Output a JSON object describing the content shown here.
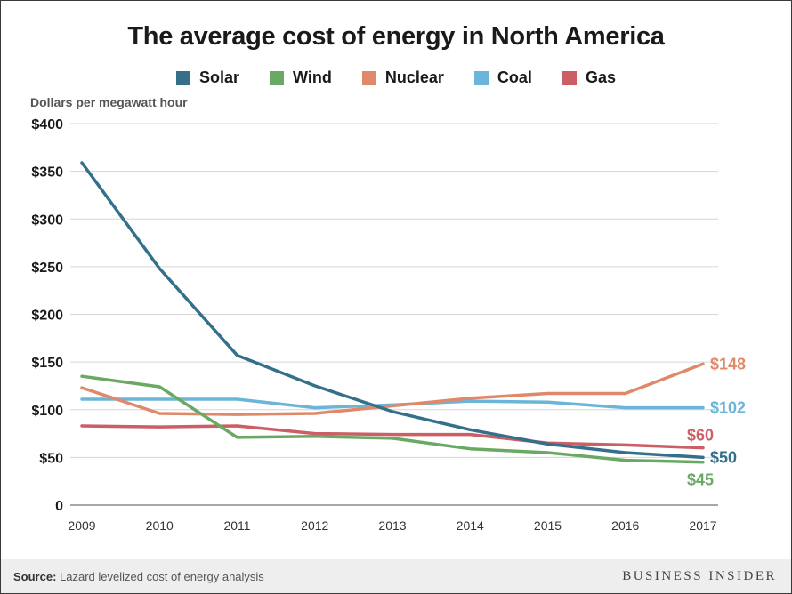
{
  "chart_data": {
    "type": "line",
    "title": "The average cost of energy in North America",
    "ylabel": "Dollars per megawatt hour",
    "xlabel": "",
    "x": [
      "2009",
      "2010",
      "2011",
      "2012",
      "2013",
      "2014",
      "2015",
      "2016",
      "2017"
    ],
    "ylim": [
      0,
      400
    ],
    "yticks": [
      {
        "value": 0,
        "label": "0"
      },
      {
        "value": 50,
        "label": "$50"
      },
      {
        "value": 100,
        "label": "$100"
      },
      {
        "value": 150,
        "label": "$150"
      },
      {
        "value": 200,
        "label": "$200"
      },
      {
        "value": 250,
        "label": "$250"
      },
      {
        "value": 300,
        "label": "$300"
      },
      {
        "value": 350,
        "label": "$350"
      },
      {
        "value": 400,
        "label": "$400"
      }
    ],
    "grid": true,
    "legend_position": "top",
    "series": [
      {
        "name": "Solar",
        "color": "#35708a",
        "values": [
          359,
          248,
          157,
          125,
          98,
          79,
          64,
          55,
          50
        ],
        "end_label": "$50"
      },
      {
        "name": "Wind",
        "color": "#6aa964",
        "values": [
          135,
          124,
          71,
          72,
          70,
          59,
          55,
          47,
          45
        ],
        "end_label": "$45"
      },
      {
        "name": "Nuclear",
        "color": "#e0896a",
        "values": [
          123,
          96,
          95,
          96,
          104,
          112,
          117,
          117,
          148
        ],
        "end_label": "$148"
      },
      {
        "name": "Coal",
        "color": "#6bb6d8",
        "values": [
          111,
          111,
          111,
          102,
          105,
          109,
          108,
          102,
          102
        ],
        "end_label": "$102"
      },
      {
        "name": "Gas",
        "color": "#cc5e66",
        "values": [
          83,
          82,
          83,
          75,
          74,
          74,
          65,
          63,
          60
        ],
        "end_label": "$60"
      }
    ]
  },
  "footer": {
    "source_prefix": "Source:",
    "source_text": " Lazard levelized cost of energy analysis",
    "brand": "BUSINESS INSIDER"
  }
}
